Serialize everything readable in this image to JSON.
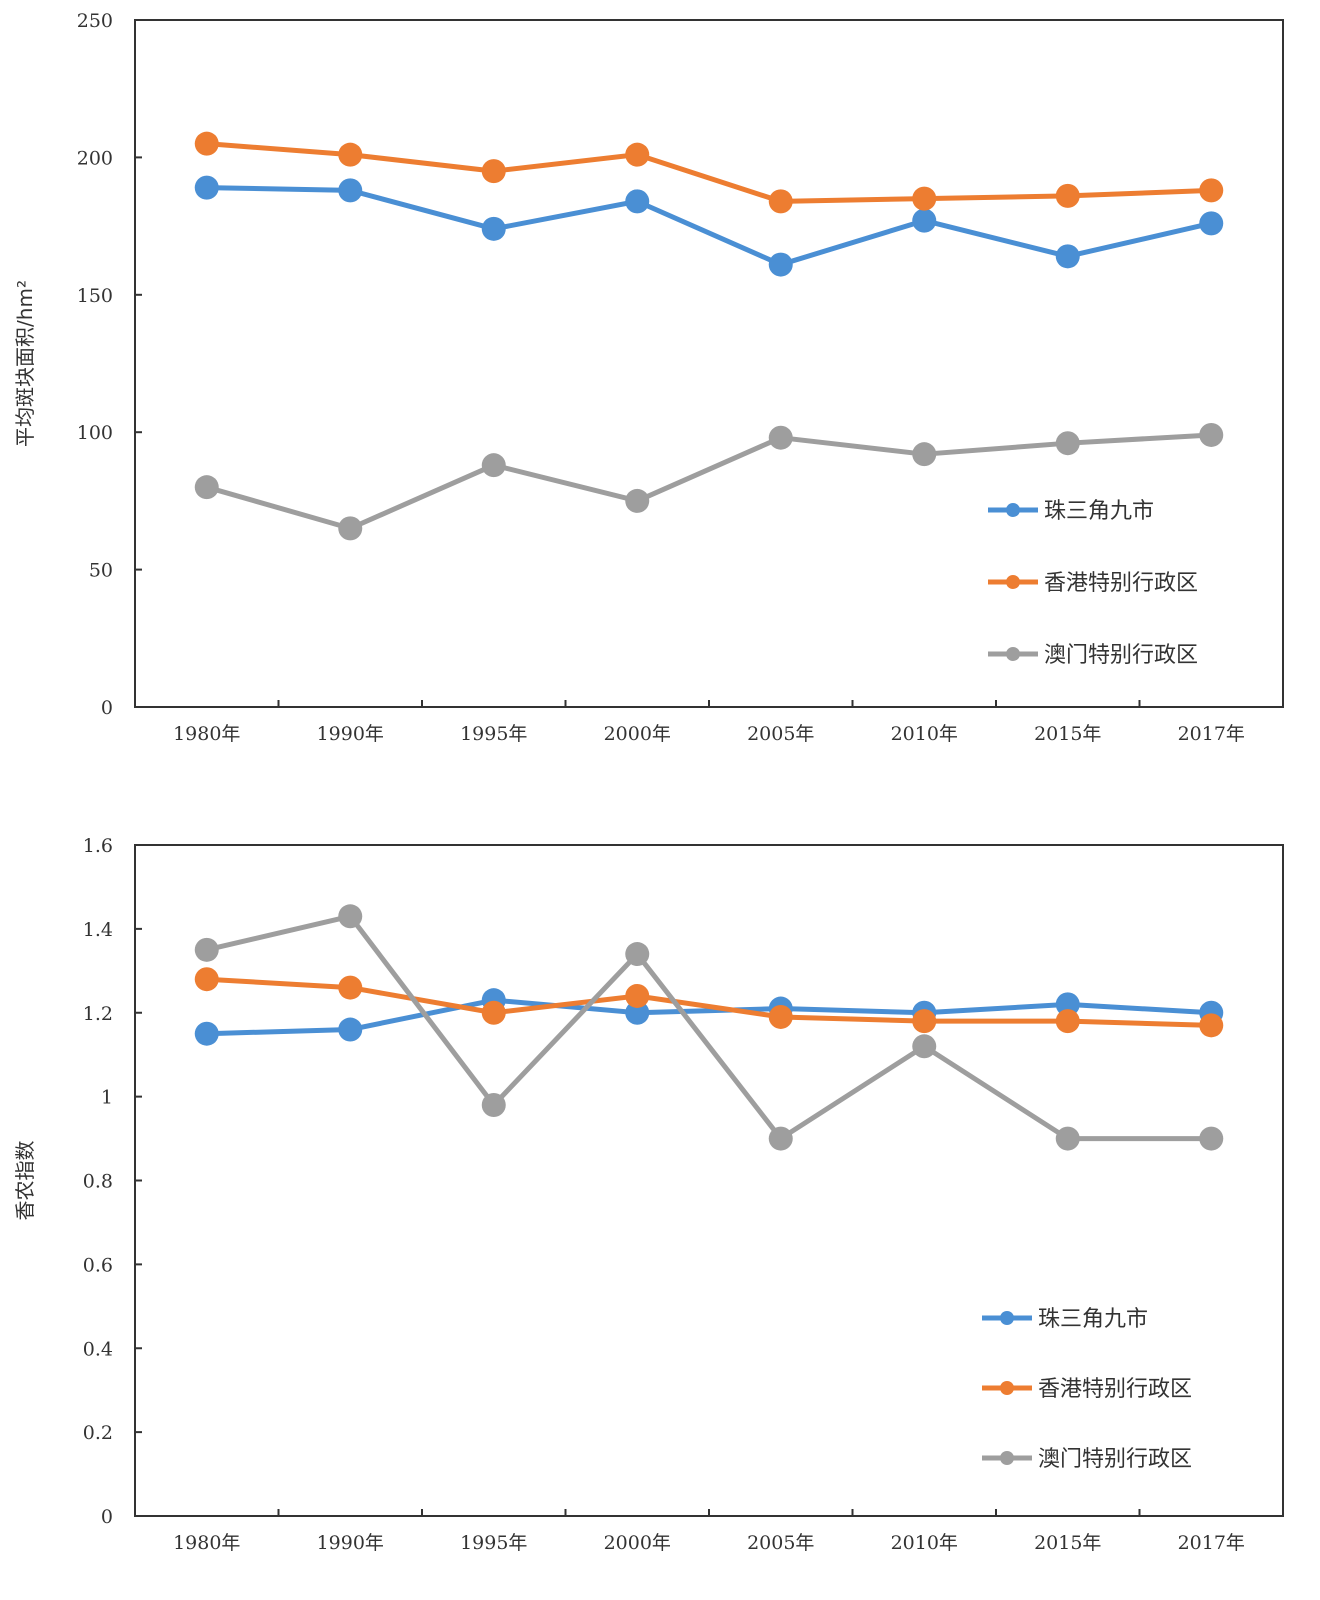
{
  "chart_data": [
    {
      "type": "line",
      "title": "",
      "xlabel": "",
      "ylabel": "平均斑块面积/hm²",
      "categories": [
        "1980年",
        "1990年",
        "1995年",
        "2000年",
        "2005年",
        "2010年",
        "2015年",
        "2017年"
      ],
      "ylim": [
        0,
        250
      ],
      "yticks": [
        0,
        50,
        100,
        150,
        200,
        250
      ],
      "ytick_labels": [
        "0",
        "50",
        "100",
        "150",
        "200",
        "250"
      ],
      "grid": false,
      "legend_position": "bottom-right",
      "series": [
        {
          "name": "珠三角九市",
          "color": "#4a8fd4",
          "values": [
            189,
            188,
            174,
            184,
            161,
            177,
            164,
            176
          ]
        },
        {
          "name": "香港特别行政区",
          "color": "#ed7d31",
          "values": [
            205,
            201,
            195,
            201,
            184,
            185,
            186,
            188
          ]
        },
        {
          "name": "澳门特别行政区",
          "color": "#9e9e9e",
          "values": [
            80,
            65,
            88,
            75,
            98,
            92,
            96,
            99
          ]
        }
      ]
    },
    {
      "type": "line",
      "title": "",
      "xlabel": "",
      "ylabel": "香农指数",
      "categories": [
        "1980年",
        "1990年",
        "1995年",
        "2000年",
        "2005年",
        "2010年",
        "2015年",
        "2017年"
      ],
      "ylim": [
        0,
        1.6
      ],
      "yticks": [
        0,
        0.2,
        0.4,
        0.6,
        0.8,
        1,
        1.2,
        1.4,
        1.6
      ],
      "ytick_labels": [
        "0",
        "0.2",
        "0.4",
        "0.6",
        "0.8",
        "1",
        "1.2",
        "1.4",
        "1.6"
      ],
      "grid": false,
      "legend_position": "bottom-right",
      "series": [
        {
          "name": "珠三角九市",
          "color": "#4a8fd4",
          "values": [
            1.15,
            1.16,
            1.23,
            1.2,
            1.21,
            1.2,
            1.22,
            1.2
          ]
        },
        {
          "name": "香港特别行政区",
          "color": "#ed7d31",
          "values": [
            1.28,
            1.26,
            1.2,
            1.24,
            1.19,
            1.18,
            1.18,
            1.17
          ]
        },
        {
          "name": "澳门特别行政区",
          "color": "#9e9e9e",
          "values": [
            1.35,
            1.43,
            0.98,
            1.34,
            0.9,
            1.12,
            0.9,
            0.9
          ]
        }
      ]
    }
  ]
}
